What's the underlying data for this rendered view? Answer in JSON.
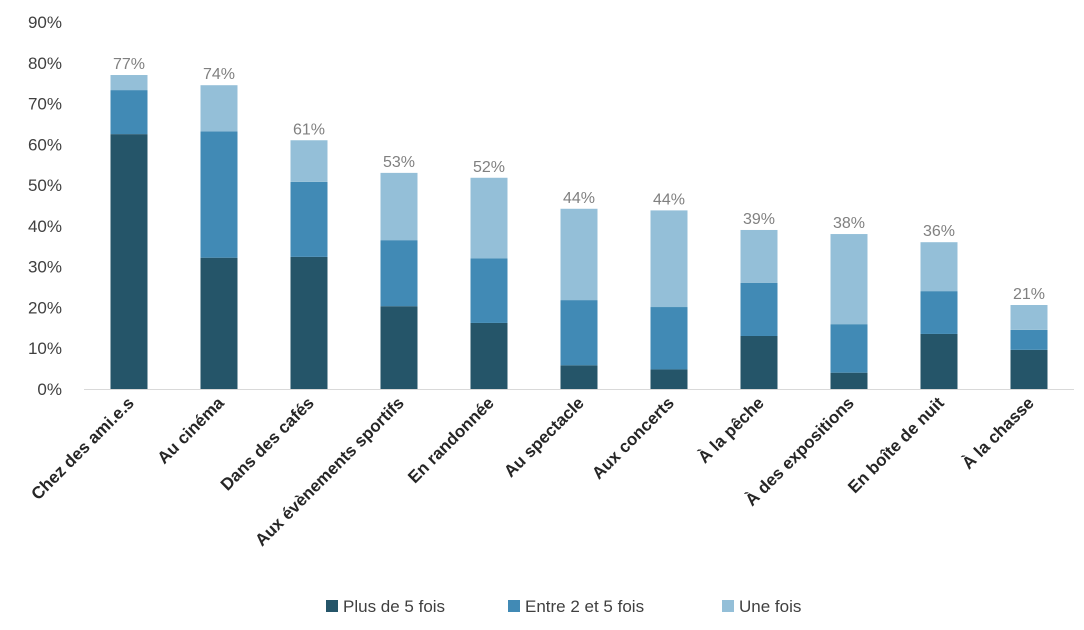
{
  "chart_data": {
    "type": "bar",
    "stacked": true,
    "title": "",
    "xlabel": "",
    "ylabel": "",
    "ylim": [
      0,
      90
    ],
    "yticks": [
      "0%",
      "10%",
      "20%",
      "30%",
      "40%",
      "50%",
      "60%",
      "70%",
      "80%",
      "90%"
    ],
    "grid": false,
    "legend_position": "bottom",
    "categories": [
      "Chez des ami.e.s",
      "Au cinéma",
      "Dans des cafés",
      "Aux évènements sportifs",
      "En randonnée",
      "Au spectacle",
      "Aux concerts",
      "À la pêche",
      "À des expositions",
      "En boîte de nuit",
      "À la chasse"
    ],
    "series": [
      {
        "name": "Plus de 5 fois",
        "color": "#255569",
        "values": [
          62.5,
          32.2,
          32.4,
          20.3,
          16.2,
          5.8,
          4.8,
          13.0,
          4.0,
          13.5,
          9.6
        ]
      },
      {
        "name": "Entre 2 et 5 fois",
        "color": "#418AB5",
        "values": [
          10.8,
          31.0,
          18.4,
          16.2,
          15.8,
          16.0,
          15.3,
          13.0,
          11.9,
          10.5,
          4.9
        ]
      },
      {
        "name": "Une fois",
        "color": "#94BFD8",
        "values": [
          3.7,
          11.3,
          10.2,
          16.5,
          19.8,
          22.4,
          23.7,
          13.0,
          22.1,
          12.0,
          6.1
        ]
      }
    ],
    "totals_labels": [
      "77%",
      "74%",
      "61%",
      "53%",
      "52%",
      "44%",
      "44%",
      "39%",
      "38%",
      "36%",
      "21%"
    ]
  }
}
